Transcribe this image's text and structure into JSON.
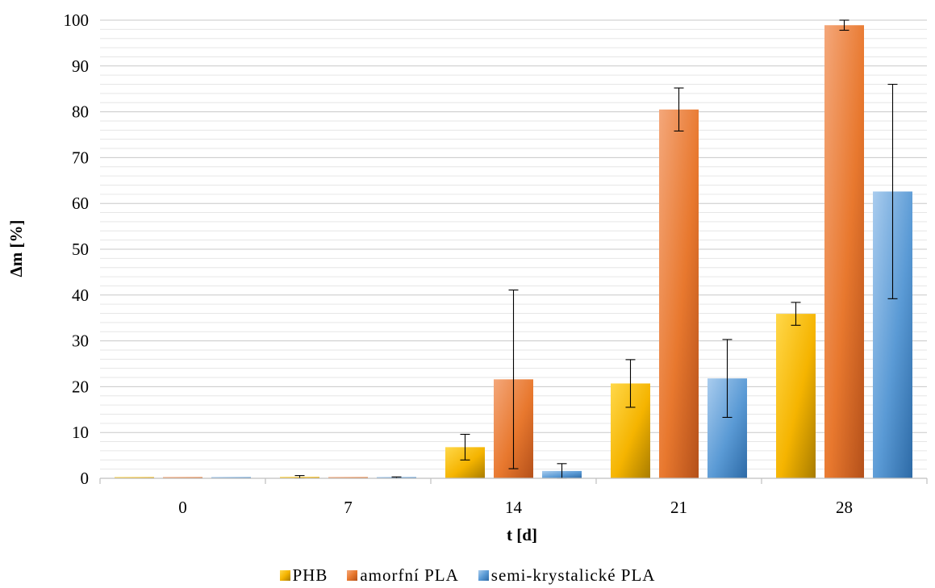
{
  "chart_data": {
    "type": "bar",
    "categories": [
      "0",
      "7",
      "14",
      "21",
      "28"
    ],
    "xlabel": "t [d]",
    "ylabel": "Δm [%]",
    "ylim": [
      0,
      100
    ],
    "yticks": [
      0,
      10,
      20,
      30,
      40,
      50,
      60,
      70,
      80,
      90,
      100
    ],
    "grid": "major and minor horizontal gridlines",
    "legend_position": "bottom",
    "series": [
      {
        "name": "PHB",
        "color": "#F5B400",
        "values": [
          0,
          0.3,
          6.8,
          20.7,
          35.9
        ],
        "errors": [
          0,
          0.3,
          2.8,
          5.2,
          2.5
        ]
      },
      {
        "name": "amorfní PLA",
        "color": "#E8782E",
        "values": [
          0,
          -0.2,
          21.6,
          80.5,
          98.9
        ],
        "errors": [
          0,
          0,
          19.5,
          4.7,
          1.1
        ]
      },
      {
        "name": "semi-krystalické PLA",
        "color": "#5A9AD5",
        "values": [
          0,
          0,
          1.6,
          21.8,
          62.6
        ],
        "errors": [
          0,
          0.3,
          1.6,
          8.5,
          23.4
        ]
      }
    ]
  }
}
